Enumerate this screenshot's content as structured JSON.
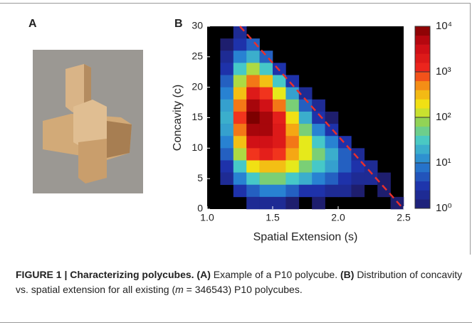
{
  "panel_a_label": "A",
  "chart_data": {
    "type": "heatmap",
    "panel_label": "B",
    "xlabel": "Spatial Extension (s)",
    "ylabel": "Concavity  (c)",
    "xlim": [
      1.0,
      2.5
    ],
    "ylim": [
      0,
      30
    ],
    "xticks": [
      {
        "value": 1.0,
        "label": "1.0"
      },
      {
        "value": 1.5,
        "label": "1.5"
      },
      {
        "value": 2.0,
        "label": "2.0"
      },
      {
        "value": 2.5,
        "label": "2.5"
      }
    ],
    "yticks": [
      0,
      5,
      10,
      15,
      20,
      25,
      30
    ],
    "x": [
      1.05,
      1.15,
      1.25,
      1.35,
      1.45,
      1.55,
      1.65,
      1.75,
      1.85,
      1.95,
      2.05,
      2.15,
      2.25,
      2.35,
      2.45
    ],
    "y": [
      29,
      27,
      25,
      23,
      21,
      19,
      17,
      15,
      13,
      11,
      9,
      7,
      5,
      3,
      1
    ],
    "z": [
      [
        null,
        null,
        2,
        null,
        null,
        null,
        null,
        null,
        null,
        null,
        null,
        null,
        null,
        null,
        null
      ],
      [
        null,
        1,
        3,
        6,
        null,
        null,
        null,
        null,
        null,
        null,
        null,
        null,
        null,
        null,
        null
      ],
      [
        null,
        2,
        10,
        20,
        6,
        null,
        null,
        null,
        null,
        null,
        null,
        null,
        null,
        null,
        null
      ],
      [
        null,
        3,
        30,
        100,
        30,
        3,
        null,
        null,
        null,
        null,
        null,
        null,
        null,
        null,
        null
      ],
      [
        null,
        6,
        100,
        600,
        300,
        30,
        3,
        null,
        null,
        null,
        null,
        null,
        null,
        null,
        null
      ],
      [
        null,
        10,
        300,
        2000,
        1000,
        160,
        16,
        2,
        null,
        null,
        null,
        null,
        null,
        null,
        null
      ],
      [
        null,
        16,
        600,
        6000,
        3000,
        600,
        60,
        6,
        2,
        null,
        null,
        null,
        null,
        null,
        null
      ],
      [
        null,
        20,
        1000,
        10000,
        6000,
        1600,
        200,
        20,
        3,
        1,
        null,
        null,
        null,
        null,
        null
      ],
      [
        null,
        16,
        600,
        6000,
        6000,
        2000,
        400,
        60,
        10,
        3,
        null,
        null,
        null,
        null,
        null
      ],
      [
        null,
        10,
        300,
        3000,
        3000,
        2000,
        600,
        160,
        30,
        10,
        3,
        null,
        null,
        null,
        null
      ],
      [
        null,
        6,
        100,
        1000,
        1600,
        1000,
        400,
        160,
        60,
        20,
        6,
        2,
        null,
        null,
        null
      ],
      [
        null,
        3,
        30,
        200,
        300,
        300,
        160,
        60,
        30,
        16,
        6,
        3,
        2,
        null,
        null
      ],
      [
        null,
        2,
        10,
        30,
        60,
        60,
        30,
        20,
        10,
        6,
        3,
        2,
        2,
        1,
        null
      ],
      [
        null,
        null,
        3,
        6,
        10,
        10,
        6,
        3,
        3,
        2,
        2,
        1,
        null,
        1,
        null
      ],
      [
        null,
        null,
        null,
        2,
        2,
        2,
        1,
        null,
        1,
        null,
        null,
        null,
        null,
        null,
        1
      ]
    ],
    "colorbar_lim": [
      1,
      10000
    ],
    "colorbar_log": true,
    "colorbar_ticks": [
      {
        "value": 1,
        "label": "10⁰"
      },
      {
        "value": 10,
        "label": "10¹"
      },
      {
        "value": 100,
        "label": "10²"
      },
      {
        "value": 1000,
        "label": "10³"
      },
      {
        "value": 10000,
        "label": "10⁴"
      }
    ],
    "boundary": {
      "x": [
        1.25,
        2.5
      ],
      "y": [
        30,
        0
      ],
      "color": "#e8302c"
    }
  },
  "caption": {
    "label": "FIGURE 1 | Characterizing polycubes.",
    "a": "(A)",
    "a_text": "Example of a P10 polycube.",
    "b": "(B)",
    "b_text": "Distribution of concavity vs. spatial extension for all existing (",
    "m_var": "m",
    "m_text": " = 346543) P10 polycubes."
  }
}
